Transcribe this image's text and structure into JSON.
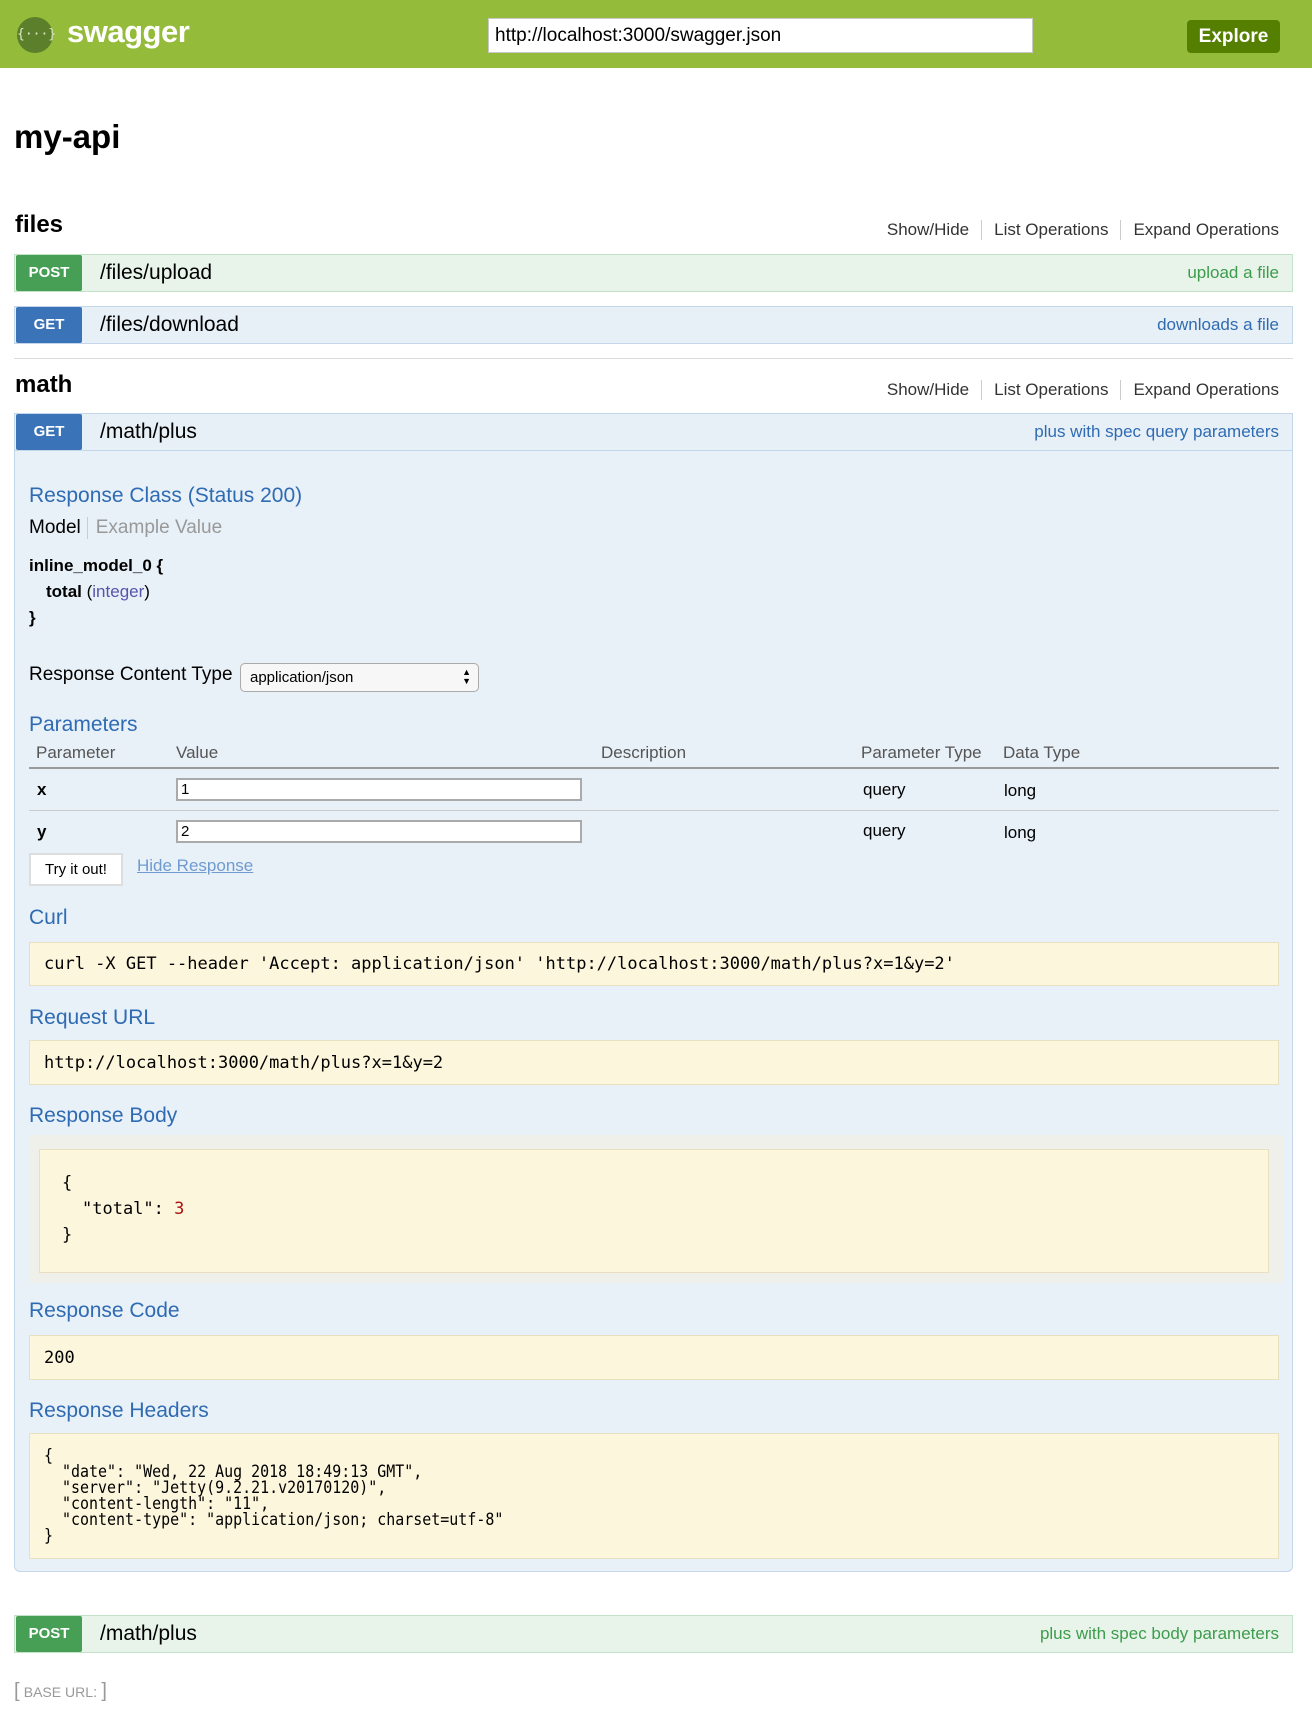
{
  "header": {
    "logo_text": "swagger",
    "logo_icon": "braces-icon",
    "url_value": "http://localhost:3000/swagger.json",
    "explore_label": "Explore",
    "color": "#94bc3a"
  },
  "api_title": "my-api",
  "resource_links": {
    "show_hide": "Show/Hide",
    "list": "List Operations",
    "expand": "Expand Operations"
  },
  "resources": [
    {
      "name": "files",
      "operations": [
        {
          "method": "POST",
          "path": "/files/upload",
          "summary": "upload a file"
        },
        {
          "method": "GET",
          "path": "/files/download",
          "summary": "downloads a file"
        }
      ]
    },
    {
      "name": "math",
      "operations": [
        {
          "method": "GET",
          "path": "/math/plus",
          "summary": "plus with spec query parameters"
        },
        {
          "method": "POST",
          "path": "/math/plus",
          "summary": "plus with spec body parameters"
        }
      ]
    }
  ],
  "expanded": {
    "response_class": "Response Class (Status 200)",
    "model_tab": "Model",
    "example_tab": "Example Value",
    "model_name": "inline_model_0 {",
    "model_field": "total",
    "model_field_type": "integer",
    "model_close": "}",
    "content_type_label": "Response Content Type",
    "content_type_value": "application/json",
    "parameters_title": "Parameters",
    "param_headers": [
      "Parameter",
      "Value",
      "Description",
      "Parameter Type",
      "Data Type"
    ],
    "params": [
      {
        "name": "x",
        "value": "1",
        "description": "",
        "param_type": "query",
        "data_type": "long"
      },
      {
        "name": "y",
        "value": "2",
        "description": "",
        "param_type": "query",
        "data_type": "long"
      }
    ],
    "try_label": "Try it out!",
    "hide_response": "Hide Response",
    "curl_title": "Curl",
    "curl": "curl -X GET --header 'Accept: application/json' 'http://localhost:3000/math/plus?x=1&y=2'",
    "request_url_title": "Request URL",
    "request_url": "http://localhost:3000/math/plus?x=1&y=2",
    "response_body_title": "Response Body",
    "body_open": "{",
    "body_key": "\"total\": ",
    "body_value": "3",
    "body_close": "}",
    "response_code_title": "Response Code",
    "response_code": "200",
    "response_headers_title": "Response Headers",
    "response_headers": "{\n  \"date\": \"Wed, 22 Aug 2018 18:49:13 GMT\",\n  \"server\": \"Jetty(9.2.21.v20170120)\",\n  \"content-length\": \"11\",\n  \"content-type\": \"application/json; charset=utf-8\"\n}"
  },
  "footer": {
    "base_url_label": "BASE URL",
    "base_url_value": ""
  }
}
